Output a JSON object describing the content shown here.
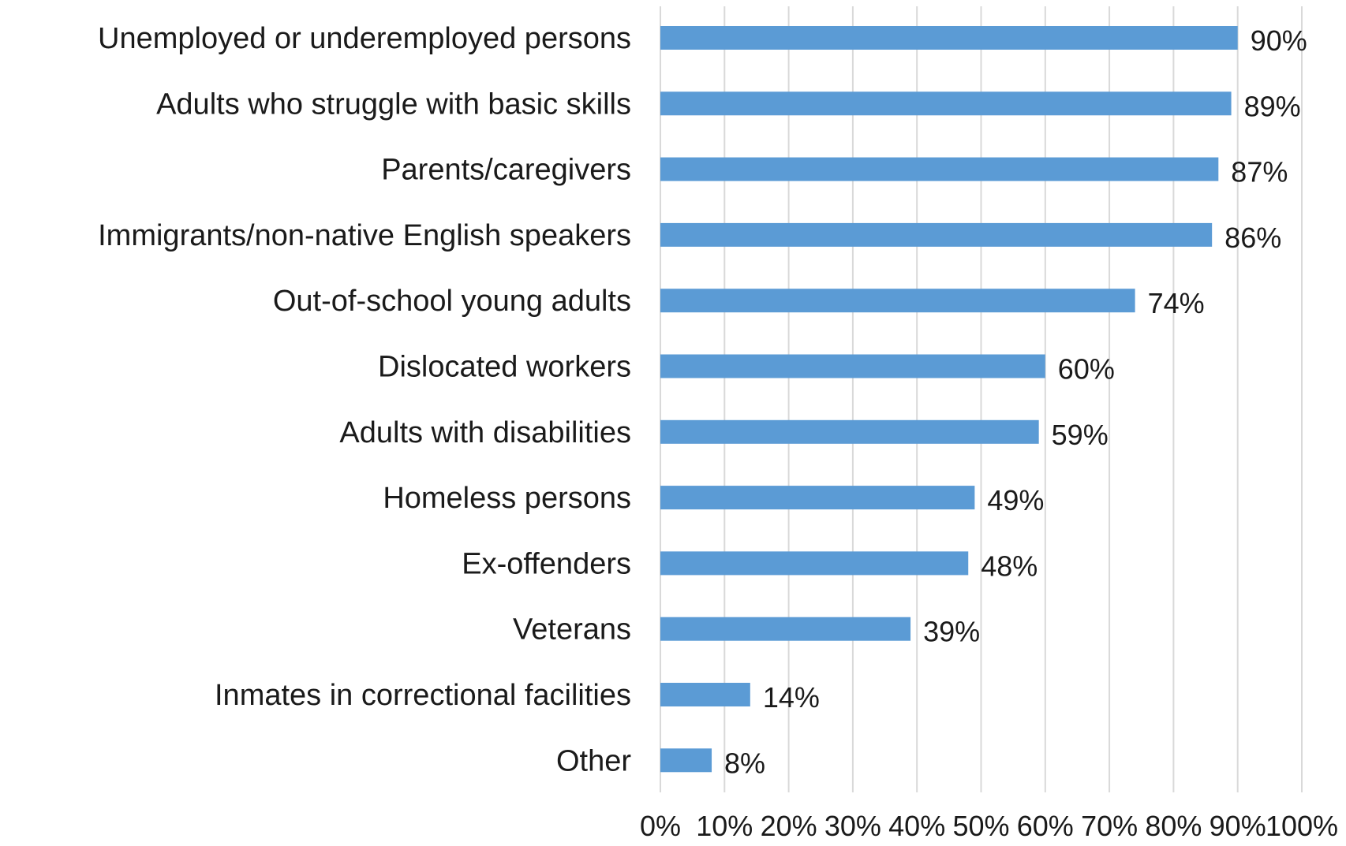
{
  "chart_data": {
    "type": "bar",
    "orientation": "horizontal",
    "categories": [
      "Unemployed or underemployed persons",
      "Adults who struggle with basic skills",
      "Parents/caregivers",
      "Immigrants/non-native English speakers",
      "Out-of-school young adults",
      "Dislocated workers",
      "Adults with disabilities",
      "Homeless persons",
      "Ex-offenders",
      "Veterans",
      "Inmates in correctional facilities",
      "Other"
    ],
    "values": [
      90,
      89,
      87,
      86,
      74,
      60,
      59,
      49,
      48,
      39,
      14,
      8
    ],
    "data_labels": [
      "90%",
      "89%",
      "87%",
      "86%",
      "74%",
      "60%",
      "59%",
      "49%",
      "48%",
      "39%",
      "14%",
      "8%"
    ],
    "title": "",
    "xlabel": "",
    "ylabel": "",
    "xlim": [
      0,
      100
    ],
    "x_ticks": [
      0,
      10,
      20,
      30,
      40,
      50,
      60,
      70,
      80,
      90,
      100
    ],
    "x_tick_labels": [
      "0%",
      "10%",
      "20%",
      "30%",
      "40%",
      "50%",
      "60%",
      "70%",
      "80%",
      "90%",
      "100%"
    ],
    "grid": true,
    "legend": false,
    "colors": {
      "bar": "#5B9BD5",
      "grid": "#D9D9D9",
      "text": "#1a1a1a"
    }
  }
}
